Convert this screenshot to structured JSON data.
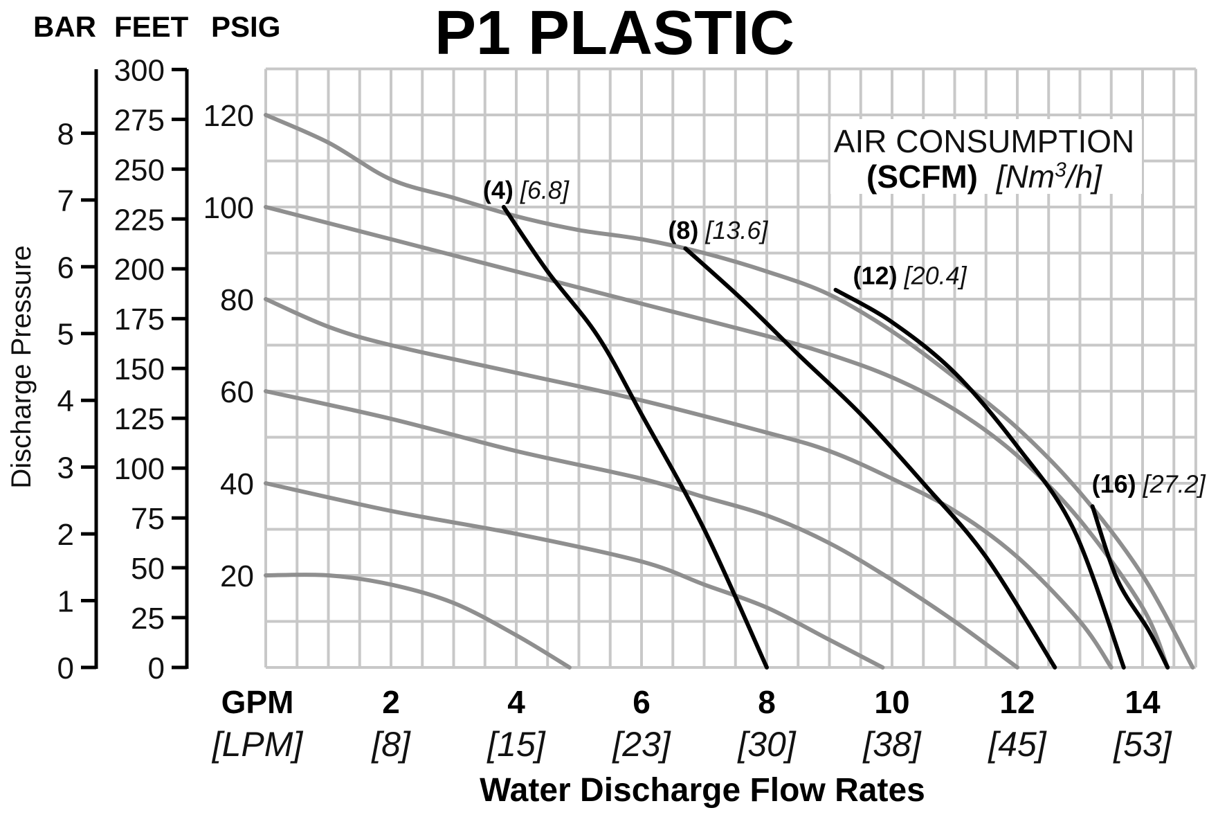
{
  "chart_data": {
    "type": "line",
    "title": "P1 PLASTIC",
    "xlabel": "Water Discharge Flow Rates",
    "ylabel": "Discharge Pressure",
    "xlim": [
      0,
      14.85
    ],
    "ylim": [
      0,
      130
    ],
    "axis_units": {
      "bar": "BAR",
      "feet": "FEET",
      "psig": "PSIG"
    },
    "psig_ticks": [
      "120",
      "100",
      "80",
      "60",
      "40",
      "20"
    ],
    "feet_ticks": [
      "300",
      "275",
      "250",
      "225",
      "200",
      "175",
      "150",
      "125",
      "100",
      "75",
      "50",
      "25",
      "0"
    ],
    "bar_ticks": [
      "8",
      "7",
      "6",
      "5",
      "4",
      "3",
      "2",
      "1",
      "0"
    ],
    "x_unit": {
      "gpm": "GPM",
      "lpm": "[LPM]"
    },
    "x_ticks": [
      {
        "gpm": "2",
        "lpm": "[8]"
      },
      {
        "gpm": "4",
        "lpm": "[15]"
      },
      {
        "gpm": "6",
        "lpm": "[23]"
      },
      {
        "gpm": "8",
        "lpm": "[30]"
      },
      {
        "gpm": "10",
        "lpm": "[38]"
      },
      {
        "gpm": "12",
        "lpm": "[45]"
      },
      {
        "gpm": "14",
        "lpm": "[53]"
      }
    ],
    "legend": {
      "line1": "AIR CONSUMPTION",
      "line2_bold": "(SCFM)",
      "line2_unit": "[Nm",
      "line2_sup": "3",
      "line2_end": "/h]"
    },
    "pressure_series": [
      {
        "name": "120 psig supply",
        "points": [
          [
            0,
            120
          ],
          [
            1,
            114
          ],
          [
            2,
            106
          ],
          [
            3,
            102
          ],
          [
            4,
            98
          ],
          [
            5,
            95
          ],
          [
            6,
            93
          ],
          [
            7,
            90
          ],
          [
            8,
            86
          ],
          [
            9,
            81
          ],
          [
            10,
            73
          ],
          [
            11,
            63
          ],
          [
            12,
            52
          ],
          [
            13,
            38
          ],
          [
            14,
            20
          ],
          [
            14.8,
            0
          ]
        ]
      },
      {
        "name": "100 psig supply",
        "points": [
          [
            0,
            100
          ],
          [
            2,
            93
          ],
          [
            4,
            86
          ],
          [
            6,
            79
          ],
          [
            8,
            72
          ],
          [
            9,
            68
          ],
          [
            10,
            63
          ],
          [
            11,
            56
          ],
          [
            12,
            46
          ],
          [
            13,
            32
          ],
          [
            14,
            13
          ],
          [
            14.4,
            0
          ]
        ]
      },
      {
        "name": "80 psig supply",
        "points": [
          [
            0,
            80
          ],
          [
            1,
            74
          ],
          [
            2,
            70
          ],
          [
            4,
            64
          ],
          [
            6,
            58
          ],
          [
            8,
            51
          ],
          [
            9,
            47
          ],
          [
            10,
            41
          ],
          [
            11,
            34
          ],
          [
            12,
            24
          ],
          [
            13,
            10
          ],
          [
            13.5,
            0
          ]
        ]
      },
      {
        "name": "60 psig supply",
        "points": [
          [
            0,
            60
          ],
          [
            2,
            54
          ],
          [
            4,
            47
          ],
          [
            6,
            41
          ],
          [
            7,
            37
          ],
          [
            8,
            33
          ],
          [
            9,
            27
          ],
          [
            10,
            19
          ],
          [
            11,
            10
          ],
          [
            12,
            0
          ]
        ]
      },
      {
        "name": "40 psig supply",
        "points": [
          [
            0,
            40
          ],
          [
            2,
            34
          ],
          [
            4,
            29
          ],
          [
            6,
            23
          ],
          [
            7,
            18
          ],
          [
            8,
            13
          ],
          [
            9,
            6
          ],
          [
            9.85,
            0
          ]
        ]
      },
      {
        "name": "20 psig supply",
        "points": [
          [
            0,
            20
          ],
          [
            1,
            20
          ],
          [
            2,
            18
          ],
          [
            3,
            14
          ],
          [
            4,
            7
          ],
          [
            4.85,
            0
          ]
        ]
      }
    ],
    "air_series": [
      {
        "scfm": "(4)",
        "nm3h": "[6.8]",
        "points": [
          [
            3.8,
            100
          ],
          [
            4.5,
            86
          ],
          [
            5.3,
            72
          ],
          [
            6,
            55
          ],
          [
            7,
            30
          ],
          [
            8,
            0
          ]
        ]
      },
      {
        "scfm": "(8)",
        "nm3h": "[13.6]",
        "points": [
          [
            6.7,
            91
          ],
          [
            7.6,
            80
          ],
          [
            8.5,
            68
          ],
          [
            9.5,
            55
          ],
          [
            10.5,
            40
          ],
          [
            11.5,
            24
          ],
          [
            12.6,
            0
          ]
        ]
      },
      {
        "scfm": "(12)",
        "nm3h": "[20.4]",
        "points": [
          [
            9.1,
            82
          ],
          [
            10,
            75
          ],
          [
            11,
            64
          ],
          [
            12,
            48
          ],
          [
            12.9,
            30
          ],
          [
            13.7,
            0
          ]
        ]
      },
      {
        "scfm": "(16)",
        "nm3h": "[27.2]",
        "points": [
          [
            13.2,
            35
          ],
          [
            13.6,
            19
          ],
          [
            14.1,
            8
          ],
          [
            14.4,
            0
          ]
        ]
      }
    ]
  }
}
